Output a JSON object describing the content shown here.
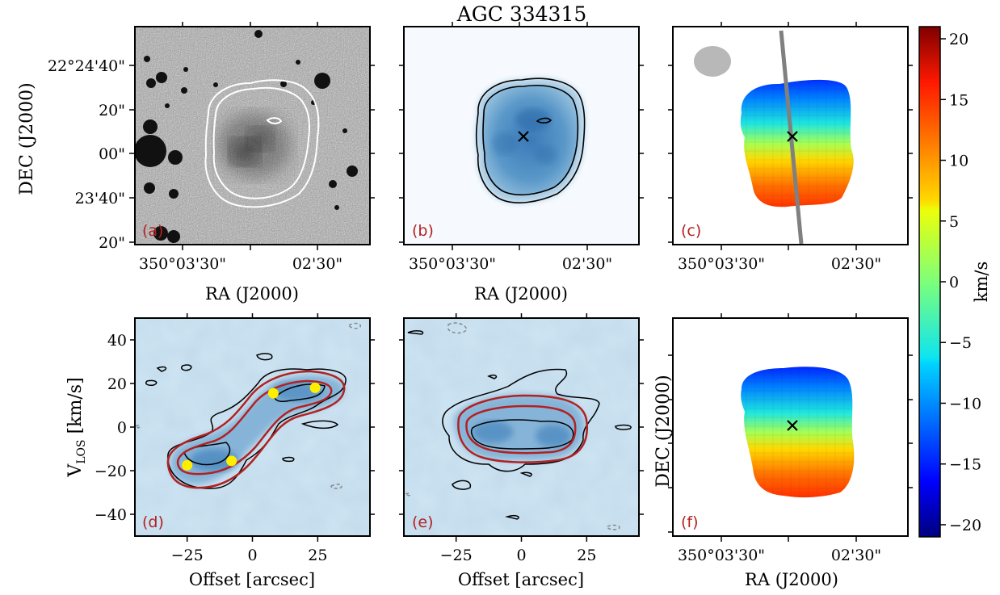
{
  "chart_data": [
    {
      "panel": "a",
      "type": "image",
      "title": "AGC 334315",
      "panel_label": "(a)",
      "xlabel": "RA (J2000)",
      "ylabel": "DEC (J2000)",
      "xticks": [
        "350°03'30\"",
        "02'30\""
      ],
      "yticks": [
        "22°24'40\"",
        "20\"",
        "00\"",
        "23'40\"",
        "20\""
      ],
      "description_colormap": "gray",
      "contours": "white"
    },
    {
      "panel": "b",
      "type": "image",
      "panel_label": "(b)",
      "xlabel": "RA (J2000)",
      "xticks": [
        "350°03'30\"",
        "02'30\""
      ],
      "colormap": "Blues",
      "marker": "x"
    },
    {
      "panel": "c",
      "type": "heatmap",
      "panel_label": "(c)",
      "xticks": [
        "350°03'30\"",
        "02'30\""
      ],
      "colormap": "jet",
      "clim": [
        -21,
        21
      ],
      "colorbar_label": "km/s",
      "colorbar_ticks": [
        20,
        15,
        10,
        5,
        0,
        -5,
        -10,
        -15,
        -20
      ],
      "marker": "x",
      "beam": "gray ellipse",
      "position_angle_line": "gray"
    },
    {
      "panel": "d",
      "type": "contour",
      "panel_label": "(d)",
      "xlabel": "Offset [arcsec]",
      "ylabel_main": "V",
      "ylabel_sub": "LOS",
      "ylabel_unit": " [km/s]",
      "xlim": [
        -45,
        45
      ],
      "ylim": [
        -50,
        50
      ],
      "xticks": [
        -25,
        0,
        25
      ],
      "yticks": [
        40,
        20,
        0,
        -20,
        -40
      ],
      "points": [
        {
          "x": -25,
          "y": -17.5
        },
        {
          "x": -8,
          "y": -15.5
        },
        {
          "x": 8,
          "y": 15.5
        },
        {
          "x": 24,
          "y": 18
        }
      ],
      "point_color": "#ffee00"
    },
    {
      "panel": "e",
      "type": "contour",
      "panel_label": "(e)",
      "xlabel": "Offset [arcsec]",
      "xlim": [
        -45,
        45
      ],
      "ylim": [
        -50,
        50
      ],
      "xticks": [
        -25,
        0,
        25
      ]
    },
    {
      "panel": "f",
      "type": "heatmap",
      "panel_label": "(f)",
      "xlabel": "RA (J2000)",
      "ylabel": "DEC (J2000)",
      "xticks": [
        "350°03'30\"",
        "02'30\""
      ],
      "colormap": "jet",
      "marker": "x"
    }
  ],
  "colors": {
    "panel_label": "#b22222",
    "contour_red": "#b22222",
    "pa_line": "#808080",
    "beam": "#b8b8b8"
  }
}
